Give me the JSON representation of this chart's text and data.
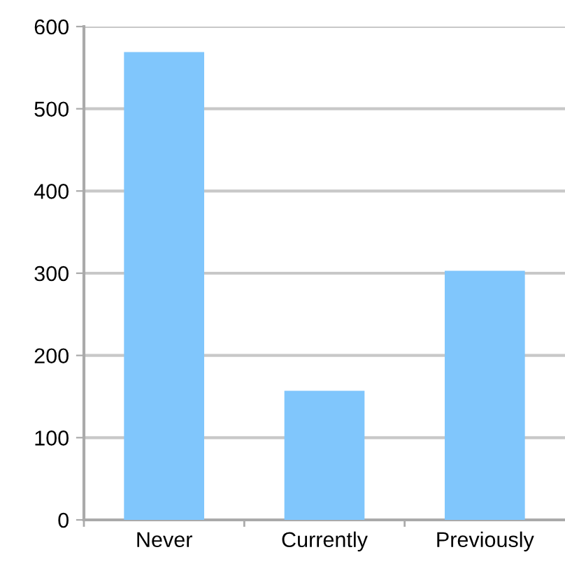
{
  "chart_data": {
    "type": "bar",
    "categories": [
      "Never",
      "Currently",
      "Previously"
    ],
    "values": [
      569,
      157,
      303
    ],
    "color": "#80c6fc",
    "ylim": [
      0,
      600
    ],
    "yticks": [
      0,
      100,
      200,
      300,
      400,
      500,
      600
    ],
    "grid": "y"
  }
}
